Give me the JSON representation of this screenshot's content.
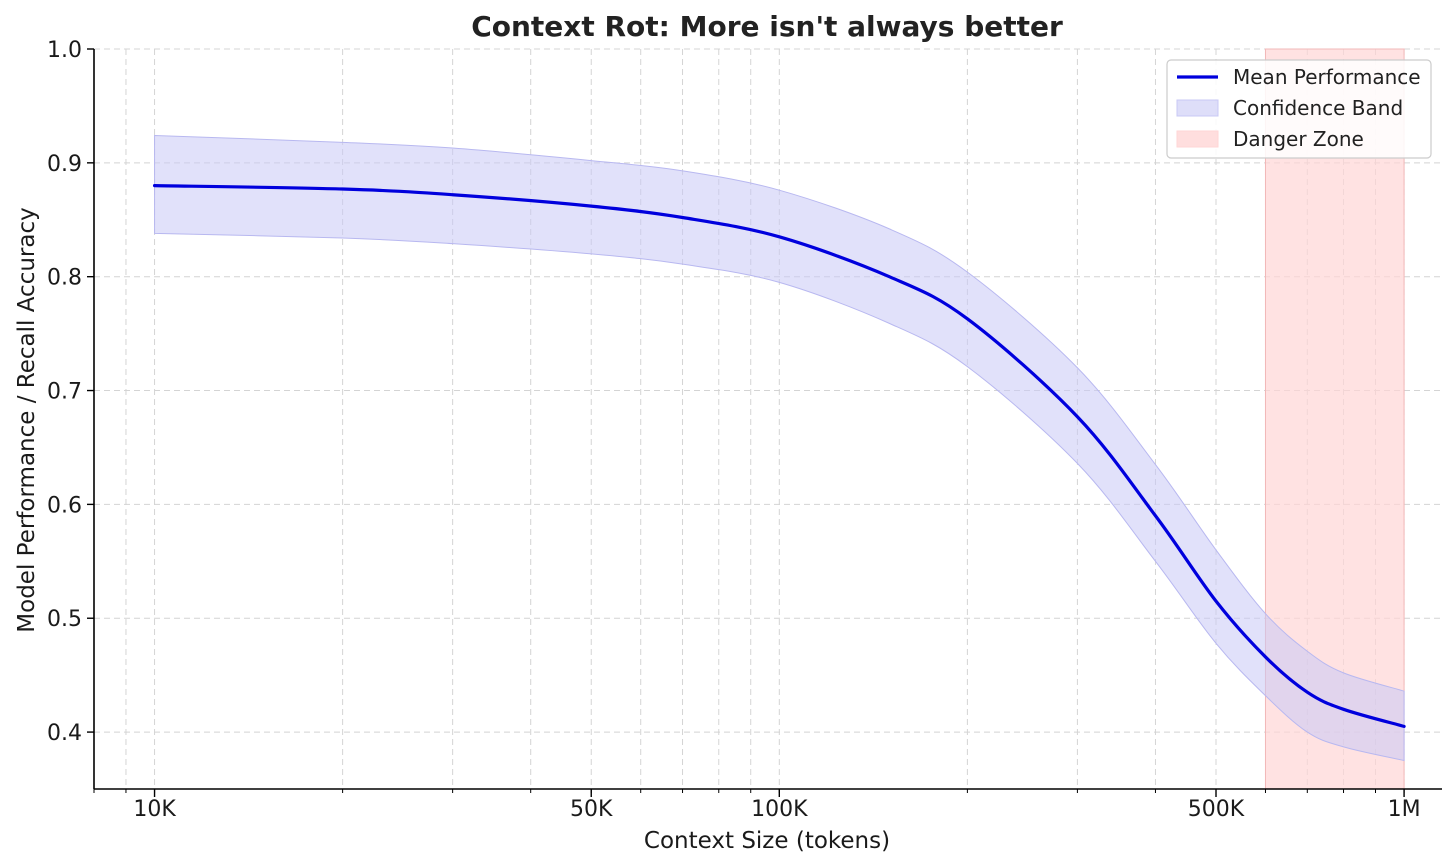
{
  "chart_data": {
    "type": "line",
    "title": "Context Rot: More isn't always better",
    "xlabel": "Context Size (tokens)",
    "ylabel": "Model Performance / Recall Accuracy",
    "x_scale": "log",
    "xlim": [
      8000,
      1150000
    ],
    "ylim": [
      0.35,
      1.0
    ],
    "grid": true,
    "legend_position": "top-right",
    "x_ticks": [
      {
        "value": 10000,
        "label": "10K"
      },
      {
        "value": 50000,
        "label": "50K"
      },
      {
        "value": 100000,
        "label": "100K"
      },
      {
        "value": 500000,
        "label": "500K"
      },
      {
        "value": 1000000,
        "label": "1M"
      }
    ],
    "y_ticks": [
      {
        "value": 0.4,
        "label": "0.4"
      },
      {
        "value": 0.5,
        "label": "0.5"
      },
      {
        "value": 0.6,
        "label": "0.6"
      },
      {
        "value": 0.7,
        "label": "0.7"
      },
      {
        "value": 0.8,
        "label": "0.8"
      },
      {
        "value": 0.9,
        "label": "0.9"
      },
      {
        "value": 1.0,
        "label": "1.0"
      }
    ],
    "series": [
      {
        "name": "Mean Performance",
        "color": "#0000dd",
        "x": [
          10000,
          20000,
          30000,
          50000,
          70000,
          100000,
          150000,
          200000,
          300000,
          400000,
          500000,
          600000,
          700000,
          800000,
          1000000
        ],
        "y": [
          0.88,
          0.877,
          0.872,
          0.862,
          0.852,
          0.835,
          0.8,
          0.763,
          0.677,
          0.59,
          0.515,
          0.466,
          0.435,
          0.42,
          0.405
        ]
      }
    ],
    "bands": [
      {
        "name": "Confidence Band",
        "color": "#c8c8f5",
        "x": [
          10000,
          20000,
          30000,
          50000,
          70000,
          100000,
          150000,
          200000,
          300000,
          400000,
          500000,
          600000,
          700000,
          800000,
          1000000
        ],
        "upper": [
          0.924,
          0.918,
          0.913,
          0.902,
          0.893,
          0.876,
          0.842,
          0.804,
          0.72,
          0.635,
          0.56,
          0.504,
          0.471,
          0.452,
          0.436
        ],
        "lower": [
          0.838,
          0.834,
          0.829,
          0.82,
          0.811,
          0.795,
          0.759,
          0.721,
          0.636,
          0.55,
          0.478,
          0.432,
          0.4,
          0.387,
          0.375
        ]
      }
    ],
    "regions": [
      {
        "name": "Danger Zone",
        "color": "#ffd6d6",
        "x_start": 600000,
        "x_end": 1000000
      }
    ],
    "legend": [
      {
        "label": "Mean Performance",
        "kind": "line",
        "color": "#0000dd"
      },
      {
        "label": "Confidence Band",
        "kind": "patch",
        "color": "#c8c8f5"
      },
      {
        "label": "Danger Zone",
        "kind": "patch",
        "color": "#ffd6d6"
      }
    ]
  }
}
